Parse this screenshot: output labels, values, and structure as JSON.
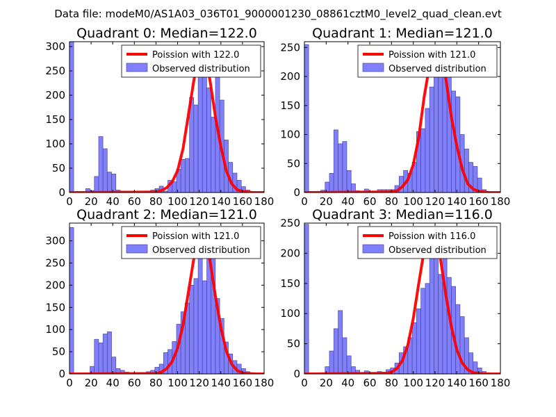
{
  "suptitle": "Data file: modeM0/AS1A03_036T01_9000001230_08861cztM0_level2_quad_clean.evt",
  "colors": {
    "bar_fill": "#8080ff",
    "bar_edge": "#4b4b99",
    "fit_line": "#ff0000"
  },
  "chart_data": [
    {
      "type": "bar",
      "title": "Quadrant 0: Median=122.0",
      "median": 122.0,
      "legend": [
        "Poission with 122.0",
        "Observed distribution"
      ],
      "legend_loc": "upper right",
      "xlim": [
        0,
        180
      ],
      "ylim": [
        0,
        310
      ],
      "xticks": [
        0,
        20,
        40,
        60,
        80,
        100,
        120,
        140,
        160,
        180
      ],
      "yticks": [
        0,
        50,
        100,
        150,
        200,
        250,
        300
      ],
      "bin_width": 3.9,
      "bins": [
        [
          0,
          310
        ],
        [
          15,
          8
        ],
        [
          19,
          4
        ],
        [
          23,
          33
        ],
        [
          27,
          115
        ],
        [
          31,
          90
        ],
        [
          35,
          42
        ],
        [
          39,
          38
        ],
        [
          43,
          5
        ],
        [
          47,
          3
        ],
        [
          51,
          2
        ],
        [
          55,
          1
        ],
        [
          59,
          2
        ],
        [
          63,
          1
        ],
        [
          67,
          1
        ],
        [
          71,
          3
        ],
        [
          75,
          5
        ],
        [
          79,
          8
        ],
        [
          83,
          13
        ],
        [
          87,
          3
        ],
        [
          91,
          25
        ],
        [
          95,
          22
        ],
        [
          99,
          48
        ],
        [
          103,
          68
        ],
        [
          107,
          70
        ],
        [
          111,
          195
        ],
        [
          115,
          180
        ],
        [
          119,
          245
        ],
        [
          123,
          262
        ],
        [
          127,
          215
        ],
        [
          131,
          155
        ],
        [
          135,
          275
        ],
        [
          139,
          190
        ],
        [
          143,
          108
        ],
        [
          147,
          62
        ],
        [
          151,
          40
        ],
        [
          155,
          25
        ],
        [
          159,
          12
        ],
        [
          163,
          5
        ],
        [
          167,
          2
        ]
      ],
      "fit": [
        [
          0,
          0
        ],
        [
          80,
          1
        ],
        [
          85,
          4
        ],
        [
          90,
          10
        ],
        [
          95,
          22
        ],
        [
          100,
          45
        ],
        [
          105,
          90
        ],
        [
          110,
          160
        ],
        [
          115,
          230
        ],
        [
          120,
          288
        ],
        [
          122,
          295
        ],
        [
          125,
          285
        ],
        [
          130,
          230
        ],
        [
          135,
          155
        ],
        [
          140,
          95
        ],
        [
          145,
          45
        ],
        [
          150,
          18
        ],
        [
          155,
          6
        ],
        [
          160,
          2
        ],
        [
          170,
          0
        ],
        [
          180,
          0
        ]
      ]
    },
    {
      "type": "bar",
      "title": "Quadrant 1: Median=121.0",
      "median": 121.0,
      "legend": [
        "Poission with 121.0",
        "Observed distribution"
      ],
      "legend_loc": "upper right",
      "xlim": [
        0,
        180
      ],
      "ylim": [
        0,
        260
      ],
      "xticks": [
        0,
        20,
        40,
        60,
        80,
        100,
        120,
        140,
        160,
        180
      ],
      "yticks": [
        0,
        50,
        100,
        150,
        200,
        250
      ],
      "bin_width": 3.9,
      "bins": [
        [
          0,
          255
        ],
        [
          15,
          4
        ],
        [
          19,
          18
        ],
        [
          23,
          33
        ],
        [
          27,
          108
        ],
        [
          31,
          84
        ],
        [
          35,
          88
        ],
        [
          39,
          38
        ],
        [
          43,
          15
        ],
        [
          47,
          3
        ],
        [
          51,
          2
        ],
        [
          55,
          6
        ],
        [
          59,
          1
        ],
        [
          63,
          1
        ],
        [
          67,
          5
        ],
        [
          71,
          5
        ],
        [
          75,
          5
        ],
        [
          79,
          5
        ],
        [
          83,
          12
        ],
        [
          87,
          28
        ],
        [
          91,
          38
        ],
        [
          95,
          33
        ],
        [
          99,
          52
        ],
        [
          103,
          105
        ],
        [
          107,
          110
        ],
        [
          111,
          145
        ],
        [
          115,
          182
        ],
        [
          119,
          210
        ],
        [
          123,
          225
        ],
        [
          127,
          243
        ],
        [
          131,
          220
        ],
        [
          135,
          175
        ],
        [
          139,
          165
        ],
        [
          143,
          100
        ],
        [
          147,
          75
        ],
        [
          151,
          52
        ],
        [
          155,
          45
        ],
        [
          159,
          25
        ],
        [
          163,
          5
        ],
        [
          167,
          2
        ]
      ],
      "fit": [
        [
          0,
          0
        ],
        [
          80,
          1
        ],
        [
          85,
          3
        ],
        [
          90,
          10
        ],
        [
          95,
          22
        ],
        [
          100,
          48
        ],
        [
          105,
          95
        ],
        [
          110,
          165
        ],
        [
          115,
          220
        ],
        [
          120,
          250
        ],
        [
          121,
          252
        ],
        [
          125,
          240
        ],
        [
          130,
          195
        ],
        [
          135,
          130
        ],
        [
          140,
          80
        ],
        [
          145,
          40
        ],
        [
          150,
          15
        ],
        [
          155,
          6
        ],
        [
          160,
          2
        ],
        [
          170,
          0
        ],
        [
          180,
          0
        ]
      ]
    },
    {
      "type": "bar",
      "title": "Quadrant 2: Median=121.0",
      "median": 121.0,
      "legend": [
        "Poission with 121.0",
        "Observed distribution"
      ],
      "legend_loc": "upper right",
      "xlim": [
        0,
        180
      ],
      "ylim": [
        0,
        340
      ],
      "xticks": [
        0,
        20,
        40,
        60,
        80,
        100,
        120,
        140,
        160,
        180
      ],
      "yticks": [
        0,
        50,
        100,
        150,
        200,
        250,
        300
      ],
      "bin_width": 3.9,
      "bins": [
        [
          0,
          330
        ],
        [
          15,
          2
        ],
        [
          19,
          17
        ],
        [
          23,
          78
        ],
        [
          27,
          70
        ],
        [
          31,
          90
        ],
        [
          35,
          95
        ],
        [
          39,
          38
        ],
        [
          43,
          12
        ],
        [
          47,
          8
        ],
        [
          51,
          4
        ],
        [
          55,
          2
        ],
        [
          59,
          2
        ],
        [
          63,
          2
        ],
        [
          67,
          3
        ],
        [
          71,
          5
        ],
        [
          75,
          8
        ],
        [
          79,
          15
        ],
        [
          83,
          22
        ],
        [
          87,
          48
        ],
        [
          91,
          55
        ],
        [
          95,
          73
        ],
        [
          99,
          112
        ],
        [
          103,
          140
        ],
        [
          107,
          160
        ],
        [
          111,
          200
        ],
        [
          115,
          215
        ],
        [
          119,
          290
        ],
        [
          123,
          210
        ],
        [
          127,
          330
        ],
        [
          131,
          300
        ],
        [
          135,
          170
        ],
        [
          139,
          125
        ],
        [
          143,
          72
        ],
        [
          147,
          45
        ],
        [
          151,
          30
        ],
        [
          155,
          22
        ],
        [
          159,
          12
        ],
        [
          163,
          5
        ],
        [
          167,
          3
        ]
      ],
      "fit": [
        [
          0,
          0
        ],
        [
          80,
          1
        ],
        [
          85,
          4
        ],
        [
          90,
          12
        ],
        [
          95,
          28
        ],
        [
          100,
          58
        ],
        [
          105,
          110
        ],
        [
          110,
          185
        ],
        [
          115,
          260
        ],
        [
          120,
          318
        ],
        [
          121,
          322
        ],
        [
          125,
          310
        ],
        [
          130,
          255
        ],
        [
          135,
          175
        ],
        [
          140,
          105
        ],
        [
          145,
          52
        ],
        [
          150,
          22
        ],
        [
          155,
          8
        ],
        [
          160,
          2
        ],
        [
          170,
          0
        ],
        [
          180,
          0
        ]
      ]
    },
    {
      "type": "bar",
      "title": "Quadrant 3: Median=116.0",
      "median": 116.0,
      "legend": [
        "Poission with 116.0",
        "Observed distribution"
      ],
      "legend_loc": "upper right",
      "xlim": [
        0,
        180
      ],
      "ylim": [
        0,
        250
      ],
      "xticks": [
        0,
        20,
        40,
        60,
        80,
        100,
        120,
        140,
        160,
        180
      ],
      "yticks": [
        0,
        50,
        100,
        150,
        200,
        250
      ],
      "bin_width": 3.9,
      "bins": [
        [
          0,
          248
        ],
        [
          15,
          2
        ],
        [
          19,
          12
        ],
        [
          23,
          38
        ],
        [
          27,
          75
        ],
        [
          31,
          105
        ],
        [
          35,
          60
        ],
        [
          39,
          30
        ],
        [
          43,
          12
        ],
        [
          47,
          6
        ],
        [
          51,
          2
        ],
        [
          55,
          5
        ],
        [
          59,
          2
        ],
        [
          63,
          2
        ],
        [
          67,
          4
        ],
        [
          71,
          3
        ],
        [
          75,
          7
        ],
        [
          79,
          10
        ],
        [
          83,
          18
        ],
        [
          87,
          35
        ],
        [
          91,
          45
        ],
        [
          95,
          60
        ],
        [
          99,
          85
        ],
        [
          103,
          108
        ],
        [
          107,
          142
        ],
        [
          111,
          150
        ],
        [
          115,
          205
        ],
        [
          119,
          195
        ],
        [
          123,
          165
        ],
        [
          127,
          225
        ],
        [
          131,
          160
        ],
        [
          135,
          145
        ],
        [
          139,
          115
        ],
        [
          143,
          95
        ],
        [
          147,
          60
        ],
        [
          151,
          35
        ],
        [
          155,
          20
        ],
        [
          159,
          10
        ],
        [
          163,
          4
        ],
        [
          167,
          2
        ]
      ],
      "fit": [
        [
          0,
          0
        ],
        [
          75,
          1
        ],
        [
          80,
          3
        ],
        [
          85,
          9
        ],
        [
          90,
          22
        ],
        [
          95,
          48
        ],
        [
          100,
          92
        ],
        [
          105,
          150
        ],
        [
          110,
          205
        ],
        [
          115,
          238
        ],
        [
          116,
          240
        ],
        [
          120,
          230
        ],
        [
          125,
          190
        ],
        [
          130,
          130
        ],
        [
          135,
          78
        ],
        [
          140,
          40
        ],
        [
          145,
          18
        ],
        [
          150,
          7
        ],
        [
          155,
          2
        ],
        [
          165,
          0
        ],
        [
          180,
          0
        ]
      ]
    }
  ]
}
